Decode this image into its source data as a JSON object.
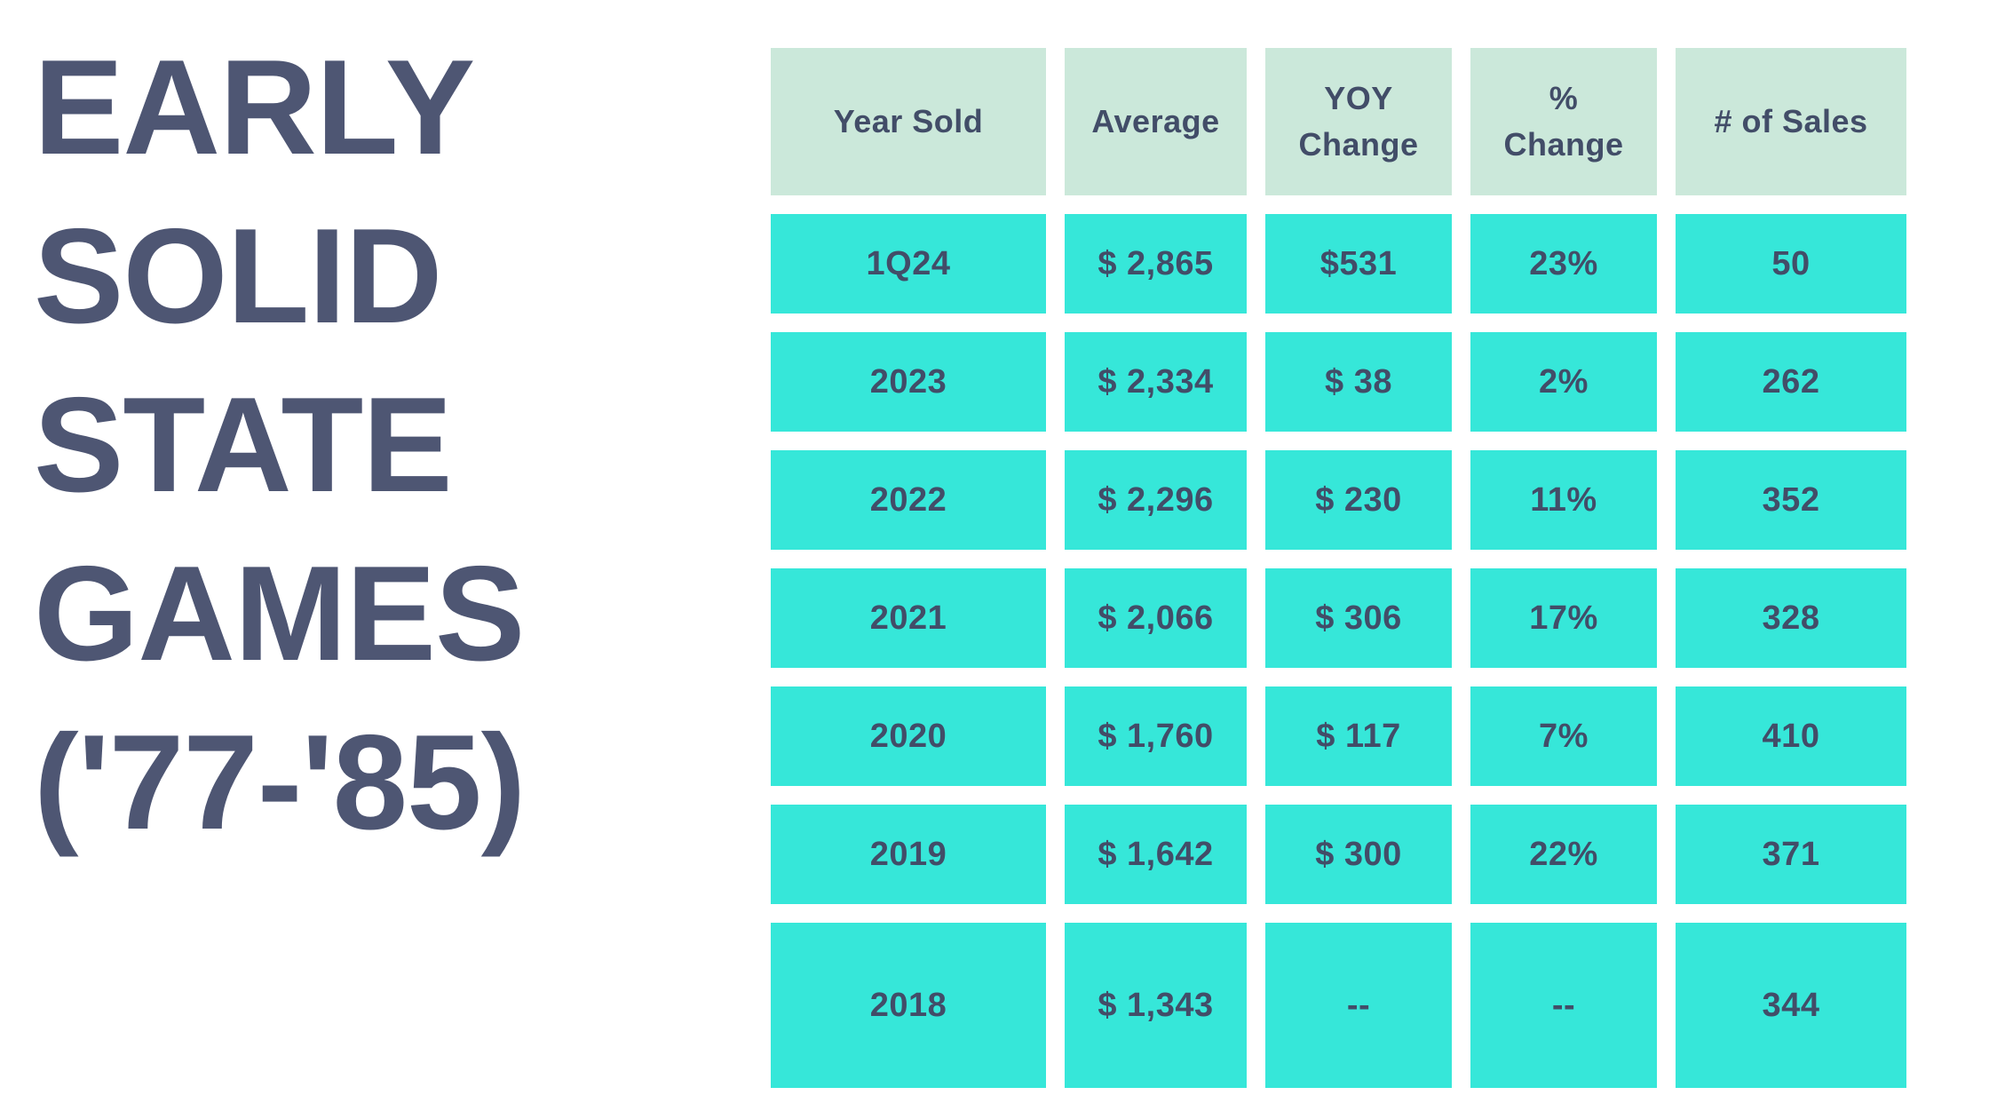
{
  "title": {
    "lines": [
      "EARLY",
      "SOLID",
      "STATE",
      "GAMES",
      "('77-'85)"
    ],
    "full_text": "EARLY SOLID STATE GAMES ('77-'85)"
  },
  "table": {
    "header_display": [
      "Year Sold",
      "Average",
      "YOY\nChange",
      "%\nChange",
      "# of Sales"
    ]
  },
  "chart_data": {
    "type": "table",
    "title": "EARLY SOLID STATE GAMES ('77-'85)",
    "columns": [
      "Year Sold",
      "Average",
      "YOY Change",
      "% Change",
      "# of Sales"
    ],
    "rows": [
      [
        "1Q24",
        "$ 2,865",
        "$531",
        "23%",
        "50"
      ],
      [
        "2023",
        "$ 2,334",
        "$ 38",
        "2%",
        "262"
      ],
      [
        "2022",
        "$ 2,296",
        "$ 230",
        "11%",
        "352"
      ],
      [
        "2021",
        "$ 2,066",
        "$ 306",
        "17%",
        "328"
      ],
      [
        "2020",
        "$ 1,760",
        "$ 117",
        "7%",
        "410"
      ],
      [
        "2019",
        "$ 1,642",
        "$ 300",
        "22%",
        "371"
      ],
      [
        "2018",
        "$ 1,343",
        "--",
        "--",
        "344"
      ]
    ]
  },
  "colors": {
    "background": "#ffffff",
    "title_text": "#4e5673",
    "header_cell_bg": "#cbe8da",
    "body_cell_bg": "#36e7d9",
    "cell_text": "#424d68"
  }
}
